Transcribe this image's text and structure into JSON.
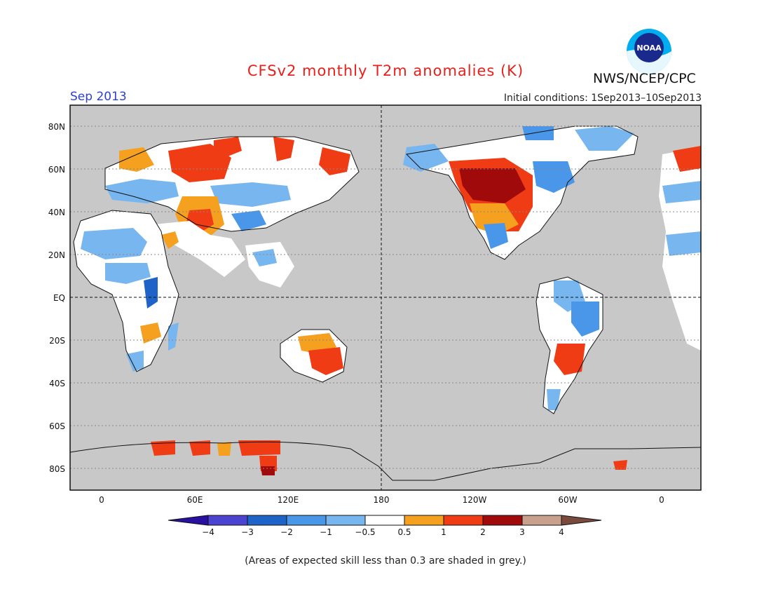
{
  "header": {
    "title": "CFSv2 monthly T2m anomalies (K)",
    "month": "Sep 2013",
    "initial_conditions": "Initial conditions: 1Sep2013–10Sep2013",
    "organization": "NWS/NCEP/CPC",
    "logo_text": "NOAA"
  },
  "map": {
    "lat_labels": [
      "80N",
      "60N",
      "40N",
      "20N",
      "EQ",
      "20S",
      "40S",
      "60S",
      "80S"
    ],
    "lon_labels": [
      "0",
      "60E",
      "120E",
      "180",
      "120W",
      "60W",
      "0"
    ],
    "colors": {
      "skill_grey": "#c8c8c8",
      "neutral": "#ffffff",
      "cold_1": "#78b6f0",
      "cold_2": "#4a96e8",
      "cold_3": "#1e64c8",
      "warm_1": "#f5a01e",
      "warm_2": "#f03c14",
      "warm_3": "#a00a0a"
    }
  },
  "colorbar": {
    "labels": [
      "−4",
      "−3",
      "−2",
      "−1",
      "−0.5",
      "0.5",
      "1",
      "2",
      "3",
      "4"
    ],
    "colors": [
      "#2a10a0",
      "#4a44d0",
      "#1e64c8",
      "#4a96e8",
      "#78b6f0",
      "#ffffff",
      "#f5a01e",
      "#f03c14",
      "#a00a0a",
      "#c9a08e",
      "#7a4a3c"
    ]
  },
  "footnote": "(Areas of expected skill less than 0.3 are shaded in grey.)"
}
